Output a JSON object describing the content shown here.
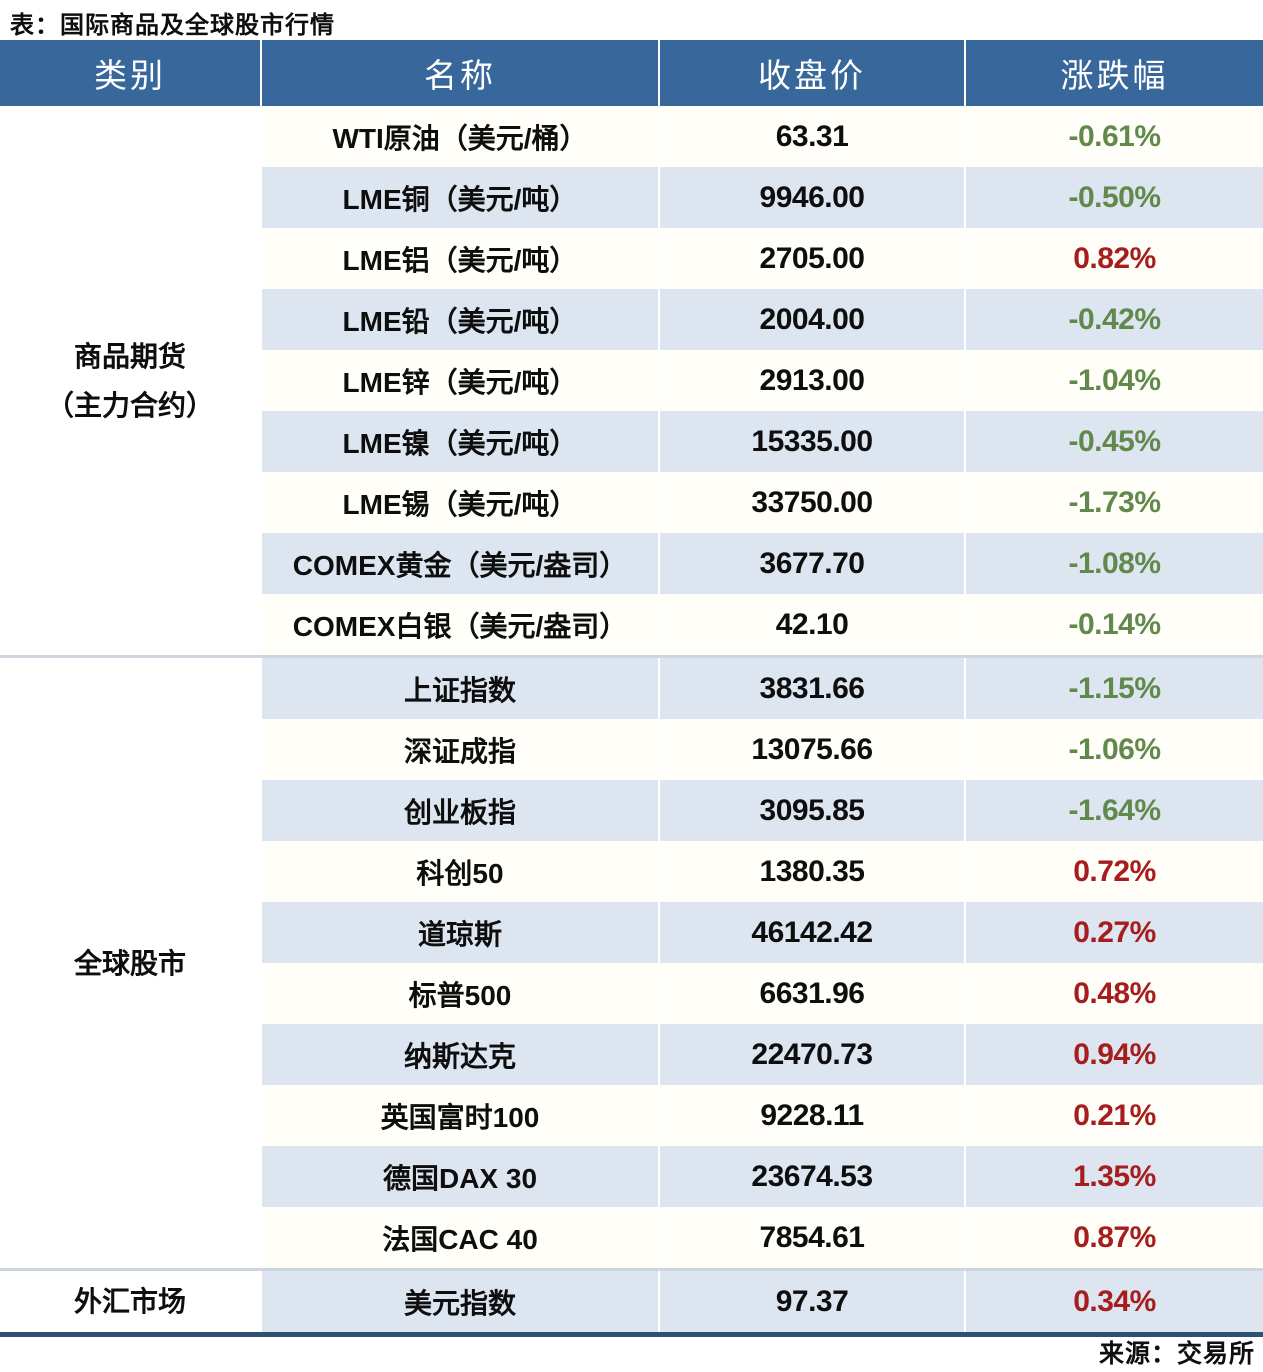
{
  "title": "表：国际商品及全球股市行情",
  "source": "来源：交易所",
  "header": {
    "category": "类别",
    "name": "名称",
    "close": "收盘价",
    "change": "涨跌幅"
  },
  "colors": {
    "header_bg": "#38689B",
    "alt_row_bg": "#DCE5F0",
    "up_red": "#A61D1D",
    "down_green": "#61894B",
    "bottom_border": "#2F5073",
    "separator_line": "#CDD6E0"
  },
  "groups": [
    {
      "category_lines": [
        "商品期货",
        "（主力合约）"
      ],
      "rows": [
        {
          "name": "WTI原油（美元/桶）",
          "close": "63.31",
          "change": "-0.61%",
          "direction": "down"
        },
        {
          "name": "LME铜（美元/吨）",
          "close": "9946.00",
          "change": "-0.50%",
          "direction": "down"
        },
        {
          "name": "LME铝（美元/吨）",
          "close": "2705.00",
          "change": "0.82%",
          "direction": "up"
        },
        {
          "name": "LME铅（美元/吨）",
          "close": "2004.00",
          "change": "-0.42%",
          "direction": "down"
        },
        {
          "name": "LME锌（美元/吨）",
          "close": "2913.00",
          "change": "-1.04%",
          "direction": "down"
        },
        {
          "name": "LME镍（美元/吨）",
          "close": "15335.00",
          "change": "-0.45%",
          "direction": "down"
        },
        {
          "name": "LME锡（美元/吨）",
          "close": "33750.00",
          "change": "-1.73%",
          "direction": "down"
        },
        {
          "name": "COMEX黄金（美元/盎司）",
          "close": "3677.70",
          "change": "-1.08%",
          "direction": "down"
        },
        {
          "name": "COMEX白银（美元/盎司）",
          "close": "42.10",
          "change": "-0.14%",
          "direction": "down"
        }
      ]
    },
    {
      "category_lines": [
        "全球股市"
      ],
      "rows": [
        {
          "name": "上证指数",
          "close": "3831.66",
          "change": "-1.15%",
          "direction": "down"
        },
        {
          "name": "深证成指",
          "close": "13075.66",
          "change": "-1.06%",
          "direction": "down"
        },
        {
          "name": "创业板指",
          "close": "3095.85",
          "change": "-1.64%",
          "direction": "down"
        },
        {
          "name": "科创50",
          "close": "1380.35",
          "change": "0.72%",
          "direction": "up"
        },
        {
          "name": "道琼斯",
          "close": "46142.42",
          "change": "0.27%",
          "direction": "up"
        },
        {
          "name": "标普500",
          "close": "6631.96",
          "change": "0.48%",
          "direction": "up"
        },
        {
          "name": "纳斯达克",
          "close": "22470.73",
          "change": "0.94%",
          "direction": "up"
        },
        {
          "name": "英国富时100",
          "close": "9228.11",
          "change": "0.21%",
          "direction": "up"
        },
        {
          "name": "德国DAX 30",
          "close": "23674.53",
          "change": "1.35%",
          "direction": "up"
        },
        {
          "name": "法国CAC 40",
          "close": "7854.61",
          "change": "0.87%",
          "direction": "up"
        }
      ]
    },
    {
      "category_lines": [
        "外汇市场"
      ],
      "rows": [
        {
          "name": "美元指数",
          "close": "97.37",
          "change": "0.34%",
          "direction": "up"
        }
      ]
    }
  ],
  "chart_data": {
    "type": "table",
    "title": "表：国际商品及全球股市行情",
    "columns": [
      "类别",
      "名称",
      "收盘价",
      "涨跌幅"
    ],
    "rows": [
      [
        "商品期货（主力合约）",
        "WTI原油（美元/桶）",
        63.31,
        "-0.61%"
      ],
      [
        "商品期货（主力合约）",
        "LME铜（美元/吨）",
        9946.0,
        "-0.50%"
      ],
      [
        "商品期货（主力合约）",
        "LME铝（美元/吨）",
        2705.0,
        "0.82%"
      ],
      [
        "商品期货（主力合约）",
        "LME铅（美元/吨）",
        2004.0,
        "-0.42%"
      ],
      [
        "商品期货（主力合约）",
        "LME锌（美元/吨）",
        2913.0,
        "-1.04%"
      ],
      [
        "商品期货（主力合约）",
        "LME镍（美元/吨）",
        15335.0,
        "-0.45%"
      ],
      [
        "商品期货（主力合约）",
        "LME锡（美元/吨）",
        33750.0,
        "-1.73%"
      ],
      [
        "商品期货（主力合约）",
        "COMEX黄金（美元/盎司）",
        3677.7,
        "-1.08%"
      ],
      [
        "商品期货（主力合约）",
        "COMEX白银（美元/盎司）",
        42.1,
        "-0.14%"
      ],
      [
        "全球股市",
        "上证指数",
        3831.66,
        "-1.15%"
      ],
      [
        "全球股市",
        "深证成指",
        13075.66,
        "-1.06%"
      ],
      [
        "全球股市",
        "创业板指",
        3095.85,
        "-1.64%"
      ],
      [
        "全球股市",
        "科创50",
        1380.35,
        "0.72%"
      ],
      [
        "全球股市",
        "道琼斯",
        46142.42,
        "0.27%"
      ],
      [
        "全球股市",
        "标普500",
        6631.96,
        "0.48%"
      ],
      [
        "全球股市",
        "纳斯达克",
        22470.73,
        "0.94%"
      ],
      [
        "全球股市",
        "英国富时100",
        9228.11,
        "0.21%"
      ],
      [
        "全球股市",
        "德国DAX 30",
        23674.53,
        "1.35%"
      ],
      [
        "全球股市",
        "法国CAC 40",
        7854.61,
        "0.87%"
      ],
      [
        "外汇市场",
        "美元指数",
        97.37,
        "0.34%"
      ]
    ],
    "notes": "red = 上涨(up), green = 下跌(down); source 来源：交易所"
  }
}
